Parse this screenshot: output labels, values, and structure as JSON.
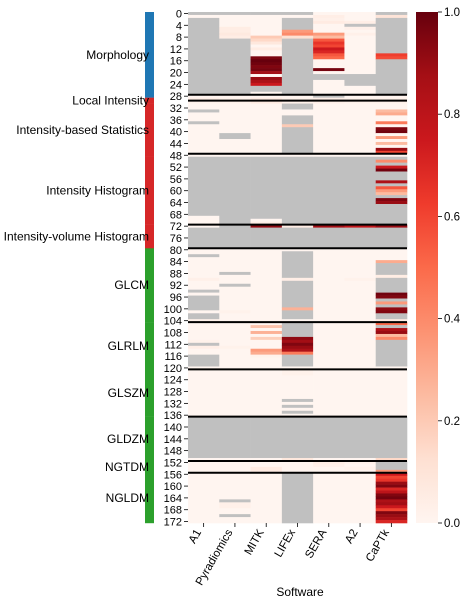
{
  "chart_data": {
    "type": "heatmap",
    "xlabel": "Software",
    "ylabel": "",
    "columns": [
      "A1",
      "Pyradiomics",
      "MITK",
      "LIFEx",
      "SERA",
      "A2",
      "CaPTk"
    ],
    "n_rows": 173,
    "y_ticks": [
      0,
      4,
      8,
      12,
      16,
      20,
      24,
      28,
      32,
      36,
      40,
      44,
      48,
      52,
      56,
      60,
      64,
      68,
      72,
      76,
      80,
      84,
      88,
      92,
      96,
      100,
      104,
      108,
      112,
      116,
      120,
      124,
      128,
      132,
      136,
      140,
      144,
      148,
      152,
      156,
      160,
      164,
      168,
      172
    ],
    "colorbar": {
      "min": 0.0,
      "max": 1.0,
      "ticks": [
        0.0,
        0.2,
        0.4,
        0.6,
        0.8,
        1.0
      ],
      "tick_labels": [
        "0.0",
        "0.2",
        "0.4",
        "0.6",
        "0.8",
        "1.0"
      ],
      "colormap": "Reds"
    },
    "missing_color": "#c0c0c0",
    "group_boundaries_after_rows": [
      27,
      29,
      47,
      71,
      79,
      104,
      120,
      136,
      151,
      155
    ],
    "groups": [
      {
        "name": "Morphology",
        "start": 0,
        "end": 28,
        "color": "#1f77b4"
      },
      {
        "name": "Local Intensity",
        "start": 29,
        "end": 30,
        "color": "#d62728"
      },
      {
        "name": "Intensity-based Statistics",
        "start": 31,
        "end": 48,
        "color": "#d62728"
      },
      {
        "name": "Intensity Histogram",
        "start": 49,
        "end": 71,
        "color": "#d62728"
      },
      {
        "name": "Intensity-volume Histogram",
        "start": 72,
        "end": 79,
        "color": "#d62728"
      },
      {
        "name": "GLCM",
        "start": 80,
        "end": 104,
        "color": "#2ca02c"
      },
      {
        "name": "GLRLM",
        "start": 105,
        "end": 120,
        "color": "#2ca02c"
      },
      {
        "name": "GLSZM",
        "start": 121,
        "end": 136,
        "color": "#2ca02c"
      },
      {
        "name": "GLDZM",
        "start": 137,
        "end": 151,
        "color": "#2ca02c"
      },
      {
        "name": "NGTDM",
        "start": 152,
        "end": 155,
        "color": "#2ca02c"
      },
      {
        "name": "NGLDM",
        "start": 156,
        "end": 172,
        "color": "#2ca02c"
      }
    ],
    "missing_ranges": {
      "A1": [
        [
          0,
          0
        ],
        [
          2,
          27
        ],
        [
          33,
          33
        ],
        [
          37,
          37
        ],
        [
          49,
          68
        ],
        [
          73,
          79
        ],
        [
          82,
          82
        ],
        [
          94,
          94
        ],
        [
          96,
          100
        ],
        [
          102,
          103
        ],
        [
          112,
          112
        ],
        [
          116,
          119
        ],
        [
          137,
          150
        ]
      ],
      "Pyradiomics": [
        [
          0,
          0
        ],
        [
          9,
          27
        ],
        [
          41,
          42
        ],
        [
          49,
          79
        ],
        [
          88,
          88
        ],
        [
          92,
          92
        ],
        [
          137,
          150
        ],
        [
          165,
          165
        ],
        [
          170,
          170
        ]
      ],
      "MITK": [
        [
          0,
          0
        ],
        [
          25,
          26
        ],
        [
          49,
          69
        ],
        [
          73,
          79
        ],
        [
          137,
          150
        ]
      ],
      "LIFEx": [
        [
          0,
          0
        ],
        [
          2,
          5
        ],
        [
          9,
          27
        ],
        [
          31,
          32
        ],
        [
          35,
          37
        ],
        [
          39,
          47
        ],
        [
          49,
          71
        ],
        [
          73,
          79
        ],
        [
          81,
          89
        ],
        [
          91,
          99
        ],
        [
          101,
          103
        ],
        [
          105,
          109
        ],
        [
          116,
          119
        ],
        [
          131,
          131
        ],
        [
          133,
          133
        ],
        [
          135,
          135
        ],
        [
          137,
          150
        ],
        [
          156,
          172
        ]
      ],
      "SERA": [
        [
          21,
          22
        ],
        [
          28,
          28
        ],
        [
          49,
          71
        ],
        [
          73,
          79
        ],
        [
          137,
          150
        ]
      ],
      "A2": [
        [
          4,
          4
        ],
        [
          21,
          24
        ],
        [
          49,
          71
        ],
        [
          73,
          79
        ],
        [
          137,
          150
        ]
      ],
      "CaPTk": [
        [
          0,
          0
        ],
        [
          2,
          13
        ],
        [
          16,
          27
        ],
        [
          49,
          49
        ],
        [
          51,
          51
        ],
        [
          54,
          56
        ],
        [
          58,
          58
        ],
        [
          62,
          62
        ],
        [
          65,
          71
        ],
        [
          73,
          79
        ],
        [
          85,
          88
        ],
        [
          90,
          94
        ],
        [
          97,
          97
        ],
        [
          99,
          99
        ],
        [
          102,
          103
        ],
        [
          106,
          106
        ],
        [
          111,
          119
        ],
        [
          137,
          150
        ],
        [
          152,
          154
        ]
      ]
    },
    "values": {
      "A1": [
        [
          29,
          0.04
        ],
        [
          30,
          0.02
        ],
        [
          90,
          0.03
        ],
        [
          104,
          0.02
        ],
        [
          111,
          0.02
        ],
        [
          113,
          0.04
        ]
      ],
      "Pyradiomics": [
        [
          5,
          0.05
        ],
        [
          6,
          0.05
        ],
        [
          7,
          0.07
        ],
        [
          8,
          0.05
        ],
        [
          29,
          0.02
        ],
        [
          30,
          0.02
        ],
        [
          101,
          0.02
        ],
        [
          113,
          0.02
        ],
        [
          166,
          0.03
        ],
        [
          167,
          0.03
        ]
      ],
      "MITK": [
        [
          8,
          0.2
        ],
        [
          9,
          0.15
        ],
        [
          10,
          0.08
        ],
        [
          12,
          0.05
        ],
        [
          15,
          0.96
        ],
        [
          16,
          1.0
        ],
        [
          17,
          0.98
        ],
        [
          18,
          0.95
        ],
        [
          19,
          0.97
        ],
        [
          20,
          0.88
        ],
        [
          22,
          0.9
        ],
        [
          23,
          0.85
        ],
        [
          24,
          0.75
        ],
        [
          29,
          0.06
        ],
        [
          30,
          0.06
        ],
        [
          71,
          0.04
        ],
        [
          72,
          0.92
        ],
        [
          106,
          0.22
        ],
        [
          108,
          0.28
        ],
        [
          110,
          0.18
        ],
        [
          114,
          0.35
        ],
        [
          115,
          0.3
        ],
        [
          116,
          0.02
        ],
        [
          154,
          0.06
        ],
        [
          155,
          0.06
        ]
      ],
      "LIFEx": [
        [
          6,
          0.35
        ],
        [
          7,
          0.4
        ],
        [
          8,
          0.12
        ],
        [
          29,
          0.02
        ],
        [
          30,
          0.02
        ],
        [
          38,
          0.2
        ],
        [
          72,
          0.05
        ],
        [
          90,
          0.04
        ],
        [
          100,
          0.28
        ],
        [
          110,
          0.92
        ],
        [
          111,
          0.88
        ],
        [
          112,
          0.95
        ],
        [
          113,
          0.9
        ],
        [
          114,
          0.85
        ],
        [
          115,
          0.45
        ],
        [
          121,
          0.02
        ],
        [
          122,
          0.02
        ],
        [
          151,
          0.08
        ]
      ],
      "SERA": [
        [
          1,
          0.04
        ],
        [
          2,
          0.03
        ],
        [
          3,
          0.06
        ],
        [
          7,
          0.35
        ],
        [
          8,
          0.25
        ],
        [
          9,
          0.55
        ],
        [
          10,
          0.65
        ],
        [
          11,
          0.6
        ],
        [
          12,
          0.75
        ],
        [
          13,
          0.7
        ],
        [
          14,
          0.55
        ],
        [
          15,
          0.5
        ],
        [
          19,
          0.97
        ],
        [
          29,
          0.04
        ],
        [
          30,
          0.03
        ],
        [
          72,
          0.88
        ],
        [
          152,
          0.04
        ],
        [
          153,
          0.03
        ]
      ],
      "A2": [
        [
          3,
          0.04
        ],
        [
          5,
          0.03
        ],
        [
          7,
          0.03
        ],
        [
          29,
          0.02
        ],
        [
          30,
          0.02
        ],
        [
          72,
          0.78
        ],
        [
          90,
          0.02
        ],
        [
          152,
          0.02
        ],
        [
          154,
          0.02
        ]
      ],
      "CaPTk": [
        [
          1,
          0.1
        ],
        [
          14,
          0.62
        ],
        [
          15,
          0.58
        ],
        [
          29,
          0.02
        ],
        [
          30,
          0.02
        ],
        [
          33,
          0.25
        ],
        [
          34,
          0.3
        ],
        [
          37,
          0.45
        ],
        [
          39,
          0.95
        ],
        [
          40,
          0.98
        ],
        [
          42,
          0.35
        ],
        [
          44,
          0.25
        ],
        [
          46,
          0.9
        ],
        [
          47,
          0.6
        ],
        [
          50,
          0.4
        ],
        [
          52,
          0.75
        ],
        [
          53,
          0.98
        ],
        [
          57,
          0.85
        ],
        [
          59,
          0.55
        ],
        [
          60,
          0.35
        ],
        [
          61,
          0.25
        ],
        [
          63,
          0.95
        ],
        [
          64,
          0.9
        ],
        [
          72,
          0.9
        ],
        [
          84,
          0.3
        ],
        [
          89,
          0.05
        ],
        [
          95,
          0.98
        ],
        [
          96,
          0.95
        ],
        [
          98,
          0.35
        ],
        [
          100,
          0.92
        ],
        [
          101,
          0.95
        ],
        [
          104,
          0.06
        ],
        [
          105,
          0.5
        ],
        [
          107,
          0.85
        ],
        [
          108,
          0.9
        ],
        [
          109,
          0.25
        ],
        [
          110,
          0.4
        ],
        [
          151,
          0.15
        ],
        [
          155,
          0.35
        ],
        [
          156,
          0.75
        ],
        [
          157,
          0.6
        ],
        [
          158,
          0.65
        ],
        [
          159,
          0.9
        ],
        [
          160,
          0.95
        ],
        [
          161,
          0.7
        ],
        [
          162,
          0.8
        ],
        [
          163,
          0.95
        ],
        [
          164,
          0.98
        ],
        [
          165,
          0.85
        ],
        [
          166,
          0.88
        ],
        [
          167,
          0.75
        ],
        [
          168,
          0.6
        ],
        [
          169,
          0.95
        ],
        [
          170,
          0.9
        ],
        [
          171,
          0.85
        ],
        [
          172,
          0.7
        ]
      ]
    }
  }
}
